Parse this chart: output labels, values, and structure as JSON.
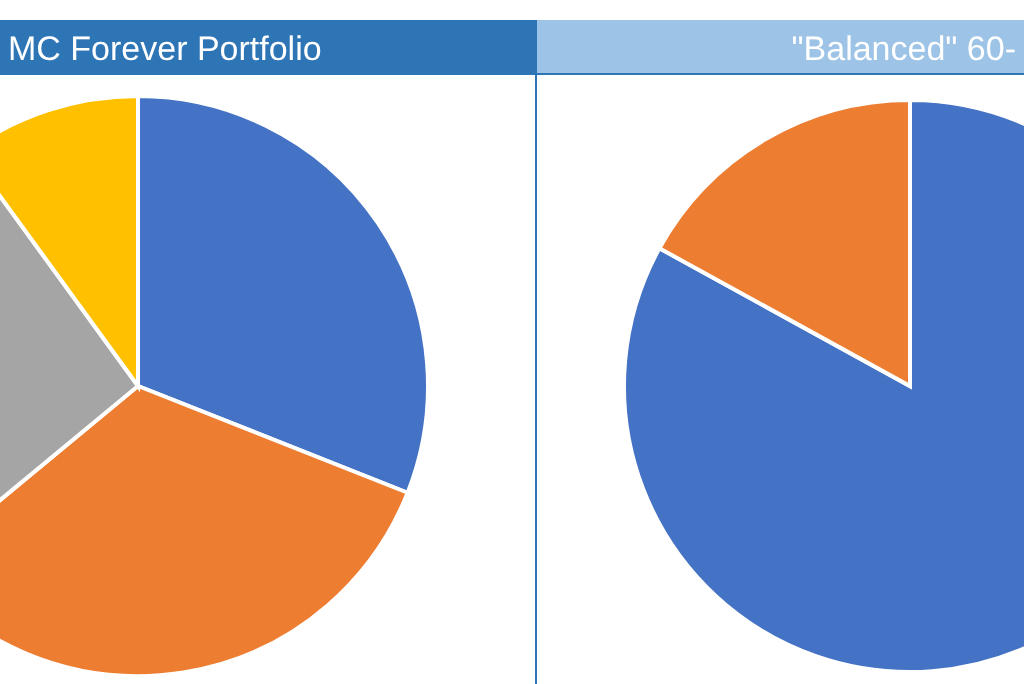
{
  "chart_data": [
    {
      "type": "pie",
      "title": "MC Forever Portfolio",
      "categories": [
        null,
        null,
        null,
        null
      ],
      "values": [
        31,
        33,
        26,
        10
      ],
      "colors": [
        "#4472c4",
        "#ed7d31",
        "#a5a5a5",
        "#ffc000"
      ]
    },
    {
      "type": "pie",
      "title": "\"Balanced\" 60-",
      "categories": [
        null,
        null
      ],
      "values": [
        83,
        17
      ],
      "colors": [
        "#4472c4",
        "#ed7d31"
      ]
    }
  ]
}
